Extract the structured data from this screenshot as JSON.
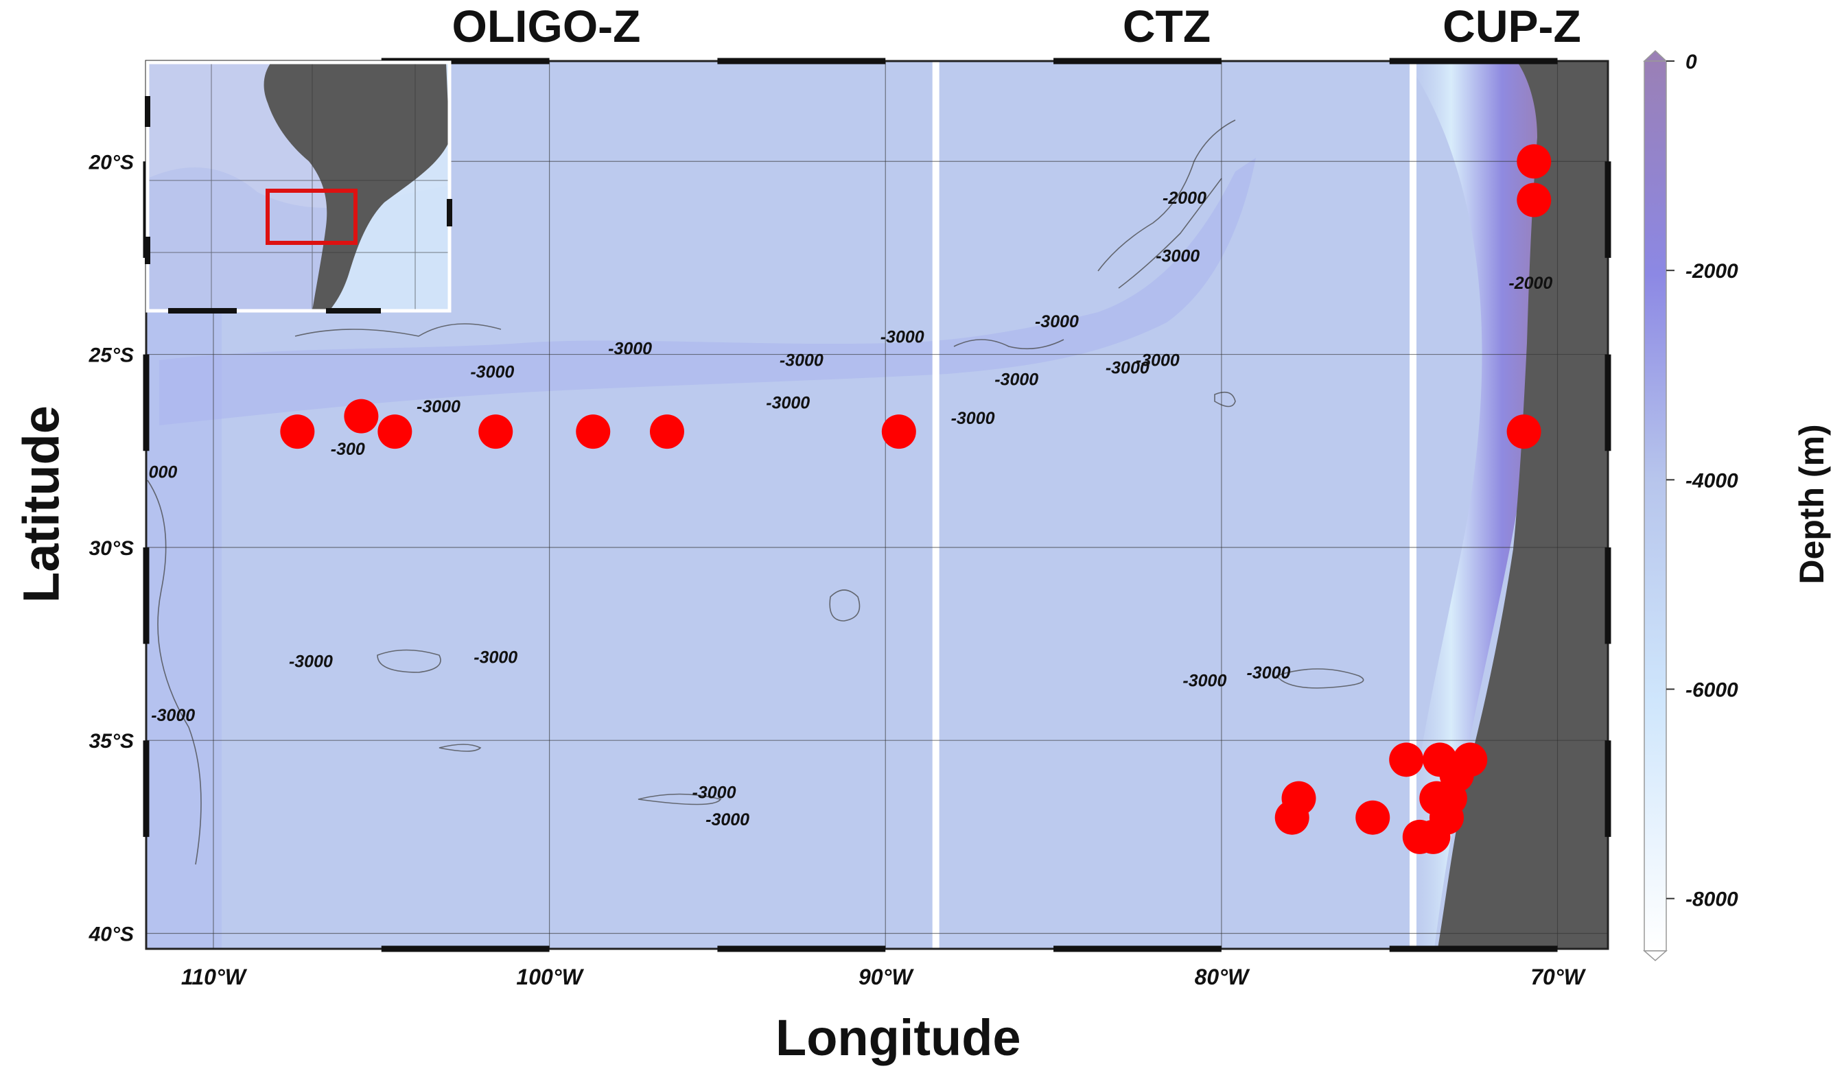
{
  "zones": {
    "oligo": "OLIGO-Z",
    "ctz": "CTZ",
    "cup": "CUP-Z"
  },
  "axes": {
    "x_title": "Longitude",
    "y_title": "Latitude",
    "x_ticks": [
      "110°W",
      "100°W",
      "90°W",
      "80°W",
      "70°W"
    ],
    "x_tick_values": [
      -110,
      -100,
      -90,
      -80,
      -70
    ],
    "y_ticks": [
      "20°S",
      "25°S",
      "30°S",
      "35°S",
      "40°S"
    ],
    "y_tick_values": [
      -20,
      -25,
      -30,
      -35,
      -40
    ],
    "lon_range": [
      -112,
      -68.5
    ],
    "lat_range": [
      -17.4,
      -40.4
    ]
  },
  "colorbar": {
    "title": "Depth (m)",
    "tick_labels": [
      "0",
      "-2000",
      "-4000",
      "-6000",
      "-8000"
    ],
    "tick_values": [
      0,
      -2000,
      -4000,
      -6000,
      -8000
    ],
    "range": [
      0,
      -8500
    ],
    "colors": [
      "#9a80b6",
      "#8c88e4",
      "#b7c5ec",
      "#cfe6fc",
      "#ffffff"
    ]
  },
  "zone_boundaries_lon": [
    -88.5,
    -74.3
  ],
  "contour_labels": [
    {
      "text": "-3000",
      "lon": -81.3,
      "lat": -22.6
    },
    {
      "text": "-2000",
      "lon": -81.1,
      "lat": -21.1
    },
    {
      "text": "-2000",
      "lon": -70.8,
      "lat": -23.3
    },
    {
      "text": "-3000",
      "lon": -84.9,
      "lat": -24.3
    },
    {
      "text": "-3000",
      "lon": -89.5,
      "lat": -24.7
    },
    {
      "text": "-3000",
      "lon": -97.6,
      "lat": -25.0
    },
    {
      "text": "-3000",
      "lon": -92.5,
      "lat": -25.3
    },
    {
      "text": "-3000",
      "lon": -101.7,
      "lat": -25.6
    },
    {
      "text": "-3000",
      "lon": -86.1,
      "lat": -25.8
    },
    {
      "text": "-3000",
      "lon": -82.8,
      "lat": -25.5
    },
    {
      "text": "-3000",
      "lon": -81.9,
      "lat": -25.3
    },
    {
      "text": "-3000",
      "lon": -103.3,
      "lat": -26.5
    },
    {
      "text": "-3000",
      "lon": -92.9,
      "lat": -26.4
    },
    {
      "text": "-3000",
      "lon": -87.4,
      "lat": -26.8
    },
    {
      "text": "-300",
      "lon": -106.0,
      "lat": -27.6
    },
    {
      "text": "000",
      "lon": -111.5,
      "lat": -28.2
    },
    {
      "text": "-3000",
      "lon": -107.1,
      "lat": -33.1
    },
    {
      "text": "-3000",
      "lon": -101.6,
      "lat": -33.0
    },
    {
      "text": "-3000",
      "lon": -80.5,
      "lat": -33.6
    },
    {
      "text": "-3000",
      "lon": -78.6,
      "lat": -33.4
    },
    {
      "text": "-3000",
      "lon": -111.2,
      "lat": -34.5
    },
    {
      "text": "-3000",
      "lon": -95.1,
      "lat": -36.5
    },
    {
      "text": "-3000",
      "lon": -94.7,
      "lat": -37.2
    }
  ],
  "stations": [
    {
      "lon": -107.5,
      "lat": -27.0
    },
    {
      "lon": -105.6,
      "lat": -26.6
    },
    {
      "lon": -104.6,
      "lat": -27.0
    },
    {
      "lon": -101.6,
      "lat": -27.0
    },
    {
      "lon": -98.7,
      "lat": -27.0
    },
    {
      "lon": -96.5,
      "lat": -27.0
    },
    {
      "lon": -89.6,
      "lat": -27.0
    },
    {
      "lon": -70.7,
      "lat": -20.0
    },
    {
      "lon": -70.7,
      "lat": -21.0
    },
    {
      "lon": -71.0,
      "lat": -27.0
    },
    {
      "lon": -74.5,
      "lat": -35.5
    },
    {
      "lon": -73.5,
      "lat": -35.5
    },
    {
      "lon": -72.6,
      "lat": -35.5
    },
    {
      "lon": -73.0,
      "lat": -35.9
    },
    {
      "lon": -73.2,
      "lat": -36.5
    },
    {
      "lon": -73.6,
      "lat": -36.5
    },
    {
      "lon": -73.3,
      "lat": -37.0
    },
    {
      "lon": -73.7,
      "lat": -37.5
    },
    {
      "lon": -74.1,
      "lat": -37.5
    },
    {
      "lon": -77.7,
      "lat": -36.5
    },
    {
      "lon": -77.9,
      "lat": -37.0
    },
    {
      "lon": -75.5,
      "lat": -37.0
    }
  ],
  "station_color": "#ff0000",
  "land_color": "#595959",
  "inset": {
    "study_box_color": "#dd1111"
  }
}
